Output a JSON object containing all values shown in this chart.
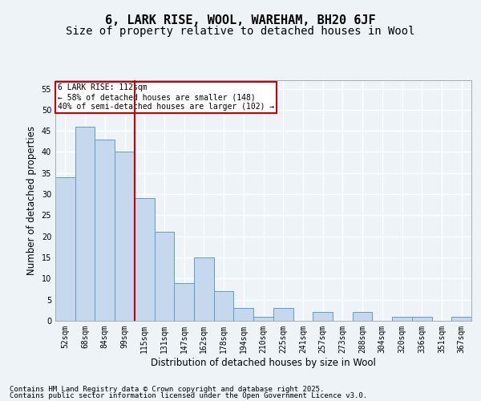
{
  "title1": "6, LARK RISE, WOOL, WAREHAM, BH20 6JF",
  "title2": "Size of property relative to detached houses in Wool",
  "xlabel": "Distribution of detached houses by size in Wool",
  "ylabel": "Number of detached properties",
  "categories": [
    "52sqm",
    "68sqm",
    "84sqm",
    "99sqm",
    "115sqm",
    "131sqm",
    "147sqm",
    "162sqm",
    "178sqm",
    "194sqm",
    "210sqm",
    "225sqm",
    "241sqm",
    "257sqm",
    "273sqm",
    "288sqm",
    "304sqm",
    "320sqm",
    "336sqm",
    "351sqm",
    "367sqm"
  ],
  "values": [
    34,
    46,
    43,
    40,
    29,
    21,
    9,
    15,
    7,
    3,
    1,
    3,
    0,
    2,
    0,
    2,
    0,
    1,
    1,
    0,
    1
  ],
  "bar_color": "#c5d8ed",
  "bar_edge_color": "#5a9ec9",
  "vline_x": 3.5,
  "vline_color": "#cc0000",
  "annotation_title": "6 LARK RISE: 112sqm",
  "annotation_line1": "← 58% of detached houses are smaller (148)",
  "annotation_line2": "40% of semi-detached houses are larger (102) →",
  "annotation_box_color": "#ffffff",
  "annotation_box_edge": "#cc0000",
  "ylim": [
    0,
    57
  ],
  "yticks": [
    0,
    5,
    10,
    15,
    20,
    25,
    30,
    35,
    40,
    45,
    50,
    55
  ],
  "footer1": "Contains HM Land Registry data © Crown copyright and database right 2025.",
  "footer2": "Contains public sector information licensed under the Open Government Licence v3.0.",
  "bg_color": "#eef3f8",
  "plot_bg_color": "#eef3f8",
  "grid_color": "#ffffff",
  "title_fontsize": 11,
  "subtitle_fontsize": 10,
  "axis_label_fontsize": 8.5,
  "tick_fontsize": 7,
  "footer_fontsize": 6.5
}
